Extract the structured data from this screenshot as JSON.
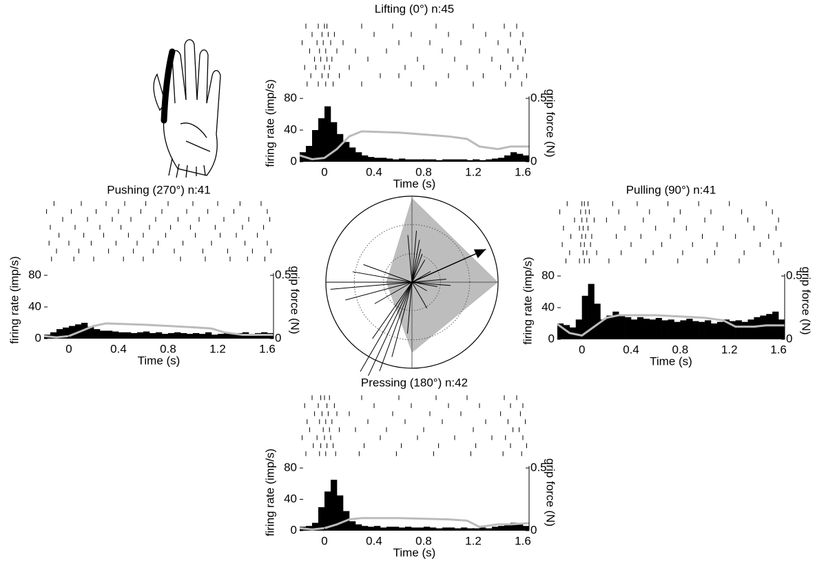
{
  "chart_data": [
    {
      "type": "histogram",
      "title": "Lifting (0°) n:45",
      "xlabel": "Time (s)",
      "ylabel": "firing rate (imp/s)",
      "y2label": "grip force (N)",
      "color": "#000000",
      "bins": [
        -0.2,
        -0.15,
        -0.1,
        -0.05,
        0,
        0.05,
        0.1,
        0.15,
        0.2,
        0.25,
        0.3,
        0.35,
        0.4,
        0.45,
        0.5,
        0.55,
        0.6,
        0.65,
        0.7,
        0.75,
        0.8,
        0.85,
        0.9,
        0.95,
        1.0,
        1.05,
        1.1,
        1.15,
        1.2,
        1.25,
        1.3,
        1.35,
        1.4,
        1.45,
        1.5,
        1.55,
        1.6,
        1.65
      ],
      "counts": [
        12,
        20,
        40,
        55,
        70,
        50,
        35,
        25,
        18,
        12,
        8,
        6,
        5,
        5,
        4,
        3,
        4,
        3,
        3,
        3,
        3,
        3,
        2,
        3,
        3,
        3,
        3,
        2,
        3,
        2,
        3,
        4,
        5,
        8,
        12,
        10,
        8
      ],
      "xlim": [
        -0.2,
        1.65
      ],
      "xticks": [
        0,
        0.4,
        0.8,
        1.2,
        1.6
      ],
      "ylim": [
        0,
        80
      ],
      "yticks": [
        0,
        40,
        80
      ],
      "y2lim": [
        0,
        0.5
      ],
      "y2ticks": [
        0,
        0.5
      ],
      "force": {
        "color": "#bbbbbb",
        "axis": "y2",
        "x": [
          -0.2,
          -0.1,
          0,
          0.1,
          0.2,
          0.3,
          0.6,
          1.0,
          1.15,
          1.25,
          1.4,
          1.5,
          1.65
        ],
        "values": [
          0.05,
          0.02,
          0.03,
          0.1,
          0.2,
          0.24,
          0.23,
          0.2,
          0.18,
          0.12,
          0.1,
          0.12,
          0.12
        ]
      },
      "raster": [
        [
          -0.15,
          -0.05,
          0.0,
          0.02,
          0.3,
          0.55,
          0.9,
          1.2,
          1.45,
          1.55
        ],
        [
          -0.1,
          -0.02,
          0.03,
          0.08,
          0.4,
          0.7,
          1.0,
          1.3,
          1.5,
          1.6
        ],
        [
          -0.18,
          -0.06,
          -0.01,
          0.05,
          0.15,
          0.6,
          0.85,
          1.1,
          1.4,
          1.58
        ],
        [
          -0.12,
          -0.04,
          0.01,
          0.1,
          0.25,
          0.5,
          0.95,
          1.25,
          1.48,
          1.62
        ],
        [
          -0.08,
          -0.03,
          0.02,
          0.06,
          0.35,
          0.75,
          1.05,
          1.35,
          1.52,
          1.6
        ],
        [
          -0.16,
          -0.07,
          0.0,
          0.04,
          0.2,
          0.65,
          0.8,
          1.15,
          1.42,
          1.56
        ],
        [
          -0.11,
          -0.02,
          0.03,
          0.12,
          0.45,
          0.6,
          1.0,
          1.28,
          1.5,
          1.63
        ],
        [
          -0.14,
          -0.05,
          0.01,
          0.07,
          0.3,
          0.7,
          0.9,
          1.2,
          1.46,
          1.59
        ]
      ]
    },
    {
      "type": "histogram",
      "title": "Pushing (270°) n:41",
      "xlabel": "Time (s)",
      "ylabel": "firing rate (imp/s)",
      "y2label": "grip force (N)",
      "color": "#000000",
      "bins": [
        -0.2,
        -0.15,
        -0.1,
        -0.05,
        0,
        0.05,
        0.1,
        0.15,
        0.2,
        0.25,
        0.3,
        0.35,
        0.4,
        0.45,
        0.5,
        0.55,
        0.6,
        0.65,
        0.7,
        0.75,
        0.8,
        0.85,
        0.9,
        0.95,
        1.0,
        1.05,
        1.1,
        1.15,
        1.2,
        1.25,
        1.3,
        1.35,
        1.4,
        1.45,
        1.5,
        1.55,
        1.6,
        1.65
      ],
      "counts": [
        5,
        8,
        12,
        14,
        16,
        18,
        20,
        15,
        12,
        10,
        10,
        9,
        8,
        8,
        7,
        8,
        9,
        7,
        8,
        6,
        7,
        8,
        7,
        6,
        7,
        6,
        8,
        5,
        6,
        7,
        6,
        7,
        8,
        6,
        7,
        8,
        7
      ],
      "xlim": [
        -0.2,
        1.65
      ],
      "xticks": [
        0,
        0.4,
        0.8,
        1.2,
        1.6
      ],
      "ylim": [
        0,
        80
      ],
      "yticks": [
        0,
        40,
        80
      ],
      "y2lim": [
        0,
        0.5
      ],
      "y2ticks": [
        0,
        0.5
      ],
      "force": {
        "color": "#bbbbbb",
        "axis": "y2",
        "x": [
          -0.2,
          -0.1,
          0,
          0.1,
          0.2,
          0.3,
          0.6,
          1.0,
          1.15,
          1.25,
          1.4,
          1.5,
          1.65
        ],
        "values": [
          0.02,
          0.01,
          0.02,
          0.06,
          0.1,
          0.12,
          0.11,
          0.09,
          0.08,
          0.05,
          0.03,
          0.03,
          0.03
        ]
      },
      "raster": [
        [
          -0.12,
          0.1,
          0.3,
          0.45,
          0.62,
          0.8,
          1.0,
          1.2,
          1.38,
          1.55
        ],
        [
          -0.18,
          0.02,
          0.22,
          0.4,
          0.58,
          0.75,
          0.95,
          1.12,
          1.33,
          1.6
        ],
        [
          -0.05,
          0.15,
          0.35,
          0.5,
          0.7,
          0.88,
          1.05,
          1.25,
          1.45,
          1.62
        ],
        [
          -0.15,
          0.05,
          0.25,
          0.42,
          0.65,
          0.82,
          0.98,
          1.18,
          1.4,
          1.57
        ],
        [
          -0.08,
          0.12,
          0.28,
          0.48,
          0.6,
          0.78,
          1.02,
          1.22,
          1.35,
          1.52
        ],
        [
          -0.16,
          0.0,
          0.18,
          0.38,
          0.55,
          0.72,
          0.92,
          1.15,
          1.42,
          1.6
        ],
        [
          -0.1,
          0.08,
          0.32,
          0.52,
          0.68,
          0.85,
          1.08,
          1.28,
          1.48,
          1.63
        ],
        [
          -0.14,
          0.04,
          0.2,
          0.44,
          0.6,
          0.9,
          1.1,
          1.3,
          1.44,
          1.58
        ]
      ]
    },
    {
      "type": "histogram",
      "title": "Pulling (90°) n:41",
      "xlabel": "Time (s)",
      "ylabel": "firing rate (imp/s)",
      "y2label": "grip force (N)",
      "color": "#000000",
      "bins": [
        -0.2,
        -0.15,
        -0.1,
        -0.05,
        0,
        0.05,
        0.1,
        0.15,
        0.2,
        0.25,
        0.3,
        0.35,
        0.4,
        0.45,
        0.5,
        0.55,
        0.6,
        0.65,
        0.7,
        0.75,
        0.8,
        0.85,
        0.9,
        0.95,
        1.0,
        1.05,
        1.1,
        1.15,
        1.2,
        1.25,
        1.3,
        1.35,
        1.4,
        1.45,
        1.5,
        1.55,
        1.6,
        1.65
      ],
      "counts": [
        20,
        18,
        15,
        25,
        55,
        70,
        45,
        25,
        30,
        35,
        30,
        28,
        25,
        28,
        26,
        25,
        27,
        24,
        25,
        22,
        24,
        26,
        23,
        22,
        24,
        20,
        22,
        25,
        23,
        24,
        22,
        25,
        28,
        30,
        32,
        35,
        25
      ],
      "xlim": [
        -0.2,
        1.65
      ],
      "xticks": [
        0,
        0.4,
        0.8,
        1.2,
        1.6
      ],
      "ylim": [
        0,
        80
      ],
      "yticks": [
        0,
        40,
        80
      ],
      "y2lim": [
        0,
        0.5
      ],
      "y2ticks": [
        0,
        0.5
      ],
      "force": {
        "color": "#bbbbbb",
        "axis": "y2",
        "x": [
          -0.2,
          -0.1,
          0,
          0.1,
          0.2,
          0.3,
          0.6,
          1.0,
          1.15,
          1.25,
          1.4,
          1.5,
          1.65
        ],
        "values": [
          0.12,
          0.05,
          0.03,
          0.1,
          0.17,
          0.19,
          0.19,
          0.17,
          0.15,
          0.1,
          0.1,
          0.11,
          0.11
        ]
      },
      "raster": [
        [
          -0.12,
          0.0,
          0.02,
          0.05,
          0.25,
          0.45,
          0.7,
          0.95,
          1.2,
          1.5
        ],
        [
          -0.18,
          -0.01,
          0.03,
          0.06,
          0.3,
          0.55,
          0.8,
          1.05,
          1.3,
          1.55
        ],
        [
          -0.06,
          0.0,
          0.04,
          0.1,
          0.2,
          0.5,
          0.75,
          1.0,
          1.35,
          1.6
        ],
        [
          -0.15,
          -0.02,
          0.01,
          0.05,
          0.35,
          0.6,
          0.85,
          1.15,
          1.4,
          1.58
        ],
        [
          -0.09,
          0.0,
          0.03,
          0.08,
          0.28,
          0.48,
          0.72,
          0.98,
          1.25,
          1.52
        ],
        [
          -0.16,
          -0.01,
          0.02,
          0.07,
          0.4,
          0.65,
          0.9,
          1.1,
          1.45,
          1.62
        ],
        [
          -0.1,
          0.01,
          0.04,
          0.12,
          0.32,
          0.58,
          0.82,
          1.08,
          1.32,
          1.56
        ],
        [
          -0.13,
          -0.02,
          0.02,
          0.06,
          0.22,
          0.52,
          0.78,
          1.02,
          1.28,
          1.6
        ]
      ]
    },
    {
      "type": "histogram",
      "title": "Pressing (180°) n:42",
      "xlabel": "Time (s)",
      "ylabel": "firing rate (imp/s)",
      "y2label": "grip force (N)",
      "color": "#000000",
      "bins": [
        -0.2,
        -0.15,
        -0.1,
        -0.05,
        0,
        0.05,
        0.1,
        0.15,
        0.2,
        0.25,
        0.3,
        0.35,
        0.4,
        0.45,
        0.5,
        0.55,
        0.6,
        0.65,
        0.7,
        0.75,
        0.8,
        0.85,
        0.9,
        0.95,
        1.0,
        1.05,
        1.1,
        1.15,
        1.2,
        1.25,
        1.3,
        1.35,
        1.4,
        1.45,
        1.5,
        1.55,
        1.6,
        1.65
      ],
      "counts": [
        5,
        6,
        10,
        30,
        50,
        65,
        45,
        25,
        12,
        8,
        6,
        5,
        6,
        4,
        5,
        5,
        4,
        5,
        4,
        4,
        5,
        4,
        3,
        4,
        4,
        3,
        4,
        3,
        3,
        4,
        3,
        5,
        6,
        8,
        10,
        8,
        6
      ],
      "xlim": [
        -0.2,
        1.65
      ],
      "xticks": [
        0,
        0.4,
        0.8,
        1.2,
        1.6
      ],
      "ylim": [
        0,
        80
      ],
      "yticks": [
        0,
        40,
        80
      ],
      "y2lim": [
        0,
        0.5
      ],
      "y2ticks": [
        0,
        0.5
      ],
      "force": {
        "color": "#bbbbbb",
        "axis": "y2",
        "x": [
          -0.2,
          -0.1,
          0,
          0.1,
          0.2,
          0.3,
          0.6,
          1.0,
          1.15,
          1.25,
          1.4,
          1.5,
          1.65
        ],
        "values": [
          0.02,
          0.01,
          0.02,
          0.05,
          0.09,
          0.1,
          0.1,
          0.09,
          0.08,
          0.03,
          0.05,
          0.05,
          0.06
        ]
      },
      "raster": [
        [
          -0.1,
          -0.03,
          0.0,
          0.04,
          0.3,
          0.6,
          0.9,
          1.15,
          1.45,
          1.55
        ],
        [
          -0.16,
          -0.05,
          0.02,
          0.08,
          0.4,
          0.7,
          1.0,
          1.25,
          1.5,
          1.6
        ],
        [
          -0.08,
          -0.02,
          0.03,
          0.1,
          0.2,
          0.55,
          0.85,
          1.1,
          1.42,
          1.58
        ],
        [
          -0.14,
          -0.04,
          0.01,
          0.06,
          0.35,
          0.65,
          0.95,
          1.3,
          1.48,
          1.62
        ],
        [
          -0.12,
          -0.01,
          0.04,
          0.12,
          0.25,
          0.5,
          0.8,
          1.2,
          1.52,
          1.57
        ],
        [
          -0.18,
          -0.06,
          0.0,
          0.05,
          0.45,
          0.75,
          1.05,
          1.35,
          1.46,
          1.6
        ],
        [
          -0.09,
          -0.03,
          0.02,
          0.07,
          0.32,
          0.62,
          0.92,
          1.22,
          1.5,
          1.63
        ],
        [
          -0.15,
          -0.04,
          0.01,
          0.09,
          0.28,
          0.58,
          0.88,
          1.18,
          1.44,
          1.59
        ]
      ]
    },
    {
      "type": "polar",
      "rlim": [
        0,
        1
      ],
      "rgrid": [
        0.33,
        0.67
      ],
      "polygon": {
        "color": "#bdbdbd",
        "angles": [
          0,
          90,
          180,
          270
        ],
        "values": [
          0.98,
          1.0,
          0.82,
          0.3
        ]
      },
      "lines": {
        "color": "#000000",
        "angles": [
          355,
          5,
          10,
          15,
          20,
          30,
          60,
          85,
          95,
          100,
          120,
          150,
          185,
          195,
          200,
          205,
          210,
          215,
          240,
          255,
          265,
          270,
          280,
          290
        ],
        "values": [
          0.55,
          0.6,
          0.5,
          0.4,
          0.35,
          0.3,
          0.25,
          0.4,
          0.45,
          0.3,
          0.2,
          0.35,
          0.6,
          0.9,
          1.1,
          1.2,
          1.2,
          0.8,
          0.5,
          0.8,
          0.95,
          1.0,
          0.7,
          0.6
        ]
      },
      "vector": {
        "color": "#000000",
        "angle": 66,
        "value": 0.94
      }
    }
  ]
}
